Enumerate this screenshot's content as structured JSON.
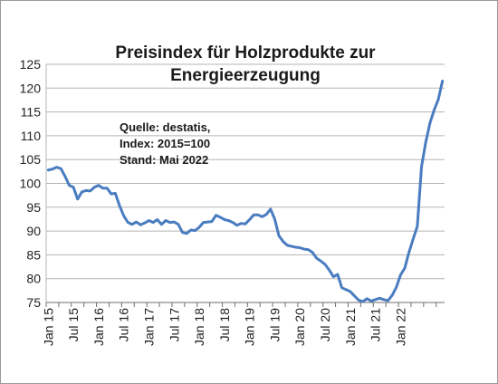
{
  "chart_data": {
    "type": "line",
    "title_lines": [
      "Preisindex für Holzprodukte zur",
      "Energieerzeugung"
    ],
    "annotation_lines": [
      "Quelle:  destatis,",
      "Index: 2015=100",
      "Stand: Mai  2022"
    ],
    "ylim": [
      75,
      125
    ],
    "yticks": [
      75,
      80,
      85,
      90,
      95,
      100,
      105,
      110,
      115,
      120,
      125
    ],
    "xticks": [
      "Jan 15",
      "Jul 15",
      "Jan 16",
      "Jul 16",
      "Jan 17",
      "Jul 17",
      "Jan 18",
      "Jul 18",
      "Jan 19",
      "Jul 19",
      "Jan 20",
      "Jul 20",
      "Jan 21",
      "Jul 21",
      "Jan 22"
    ],
    "grid": "horizontal",
    "colors": {
      "line": "#4a7cc0",
      "grid": "#b5b5b5",
      "axis": "#6f6f6f"
    },
    "series": [
      {
        "values": [
          102.8,
          103.0,
          103.4,
          103.1,
          101.5,
          99.6,
          99.2,
          96.7,
          98.2,
          98.5,
          98.4,
          99.2,
          99.6,
          99.0,
          99.0,
          97.8,
          97.9,
          95.3,
          93.2,
          91.8,
          91.4,
          91.9,
          91.3,
          91.7,
          92.2,
          91.8,
          92.4,
          91.4,
          92.2,
          91.8,
          91.9,
          91.4,
          89.7,
          89.5,
          90.2,
          90.1,
          90.8,
          91.8,
          91.9,
          92.0,
          93.3,
          92.9,
          92.4,
          92.2,
          91.8,
          91.2,
          91.6,
          91.5,
          92.4,
          93.4,
          93.4,
          93.0,
          93.5,
          94.6,
          92.5,
          89.0,
          87.8,
          87.0,
          86.8,
          86.6,
          86.5,
          86.2,
          86.1,
          85.5,
          84.3,
          83.7,
          83.0,
          81.8,
          80.4,
          80.9,
          78.1,
          77.7,
          77.3,
          76.4,
          75.5,
          75.2,
          75.8,
          75.3,
          75.6,
          75.9,
          75.6,
          75.4,
          76.5,
          78.2,
          80.8,
          82.2,
          85.5,
          88.3,
          91.0,
          103.5,
          108.6,
          112.6,
          115.4,
          117.6,
          121.5
        ]
      }
    ]
  }
}
